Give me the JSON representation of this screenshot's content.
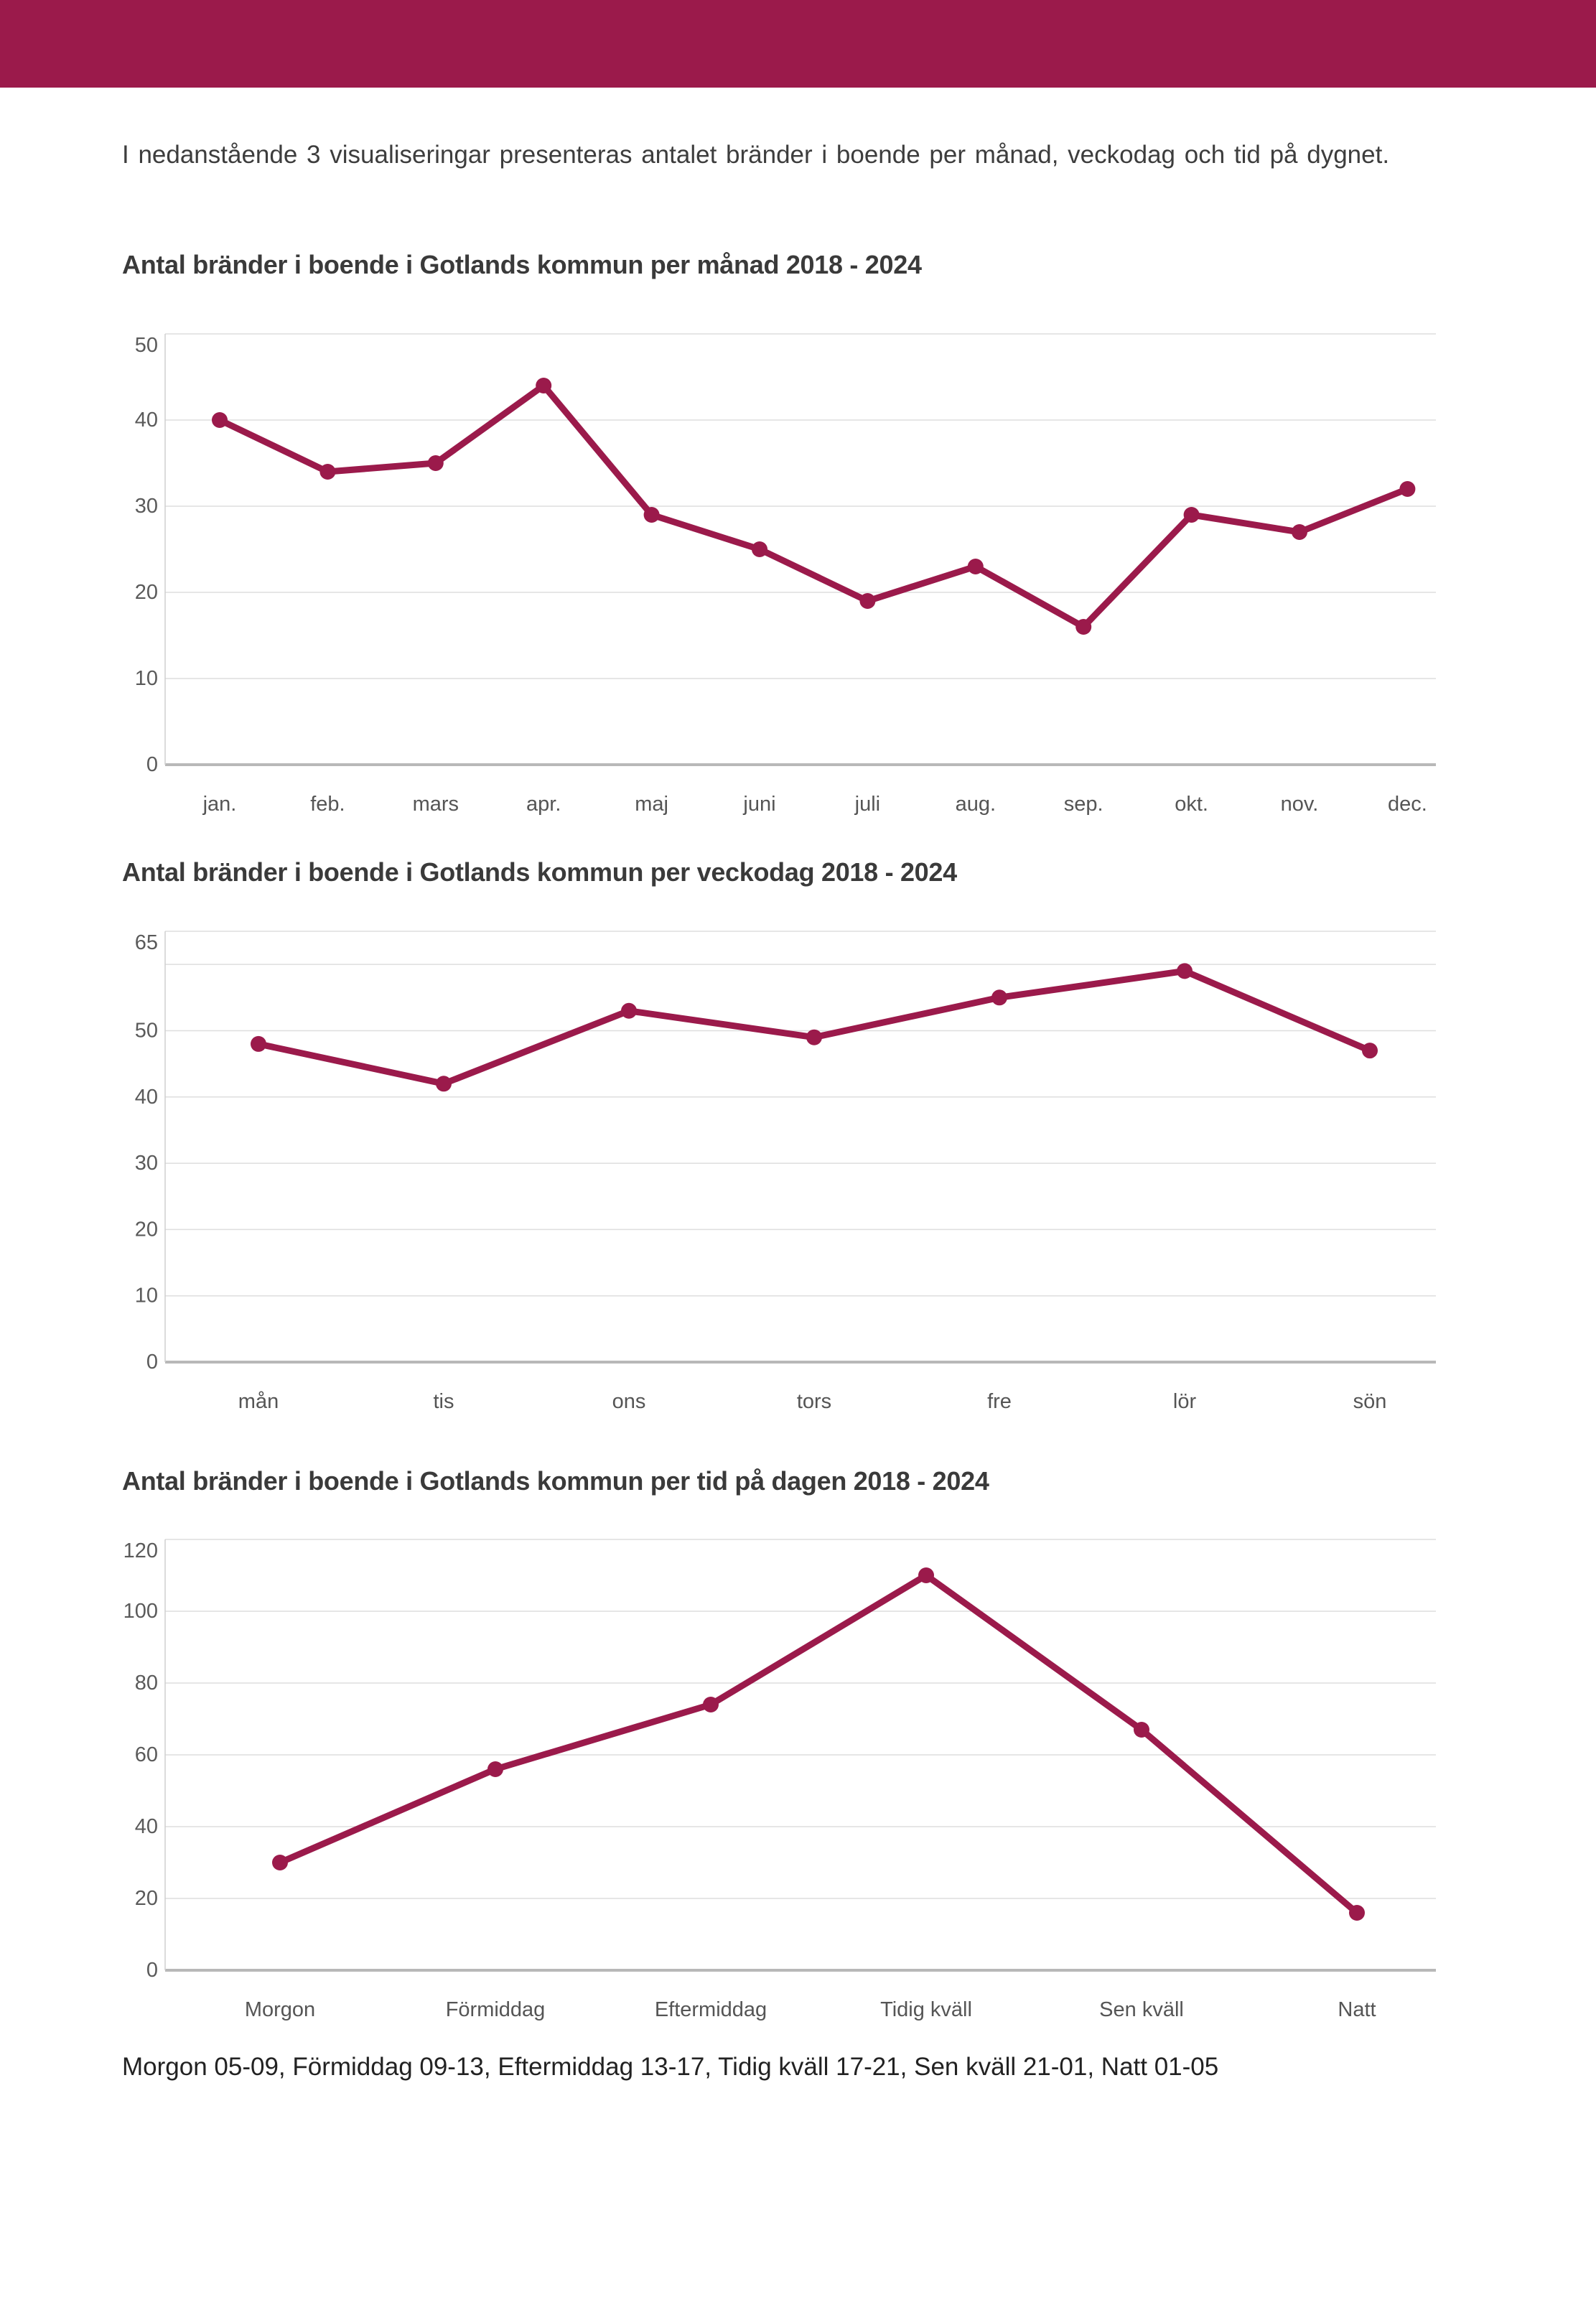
{
  "header": {
    "bar_color": "#9b1a4b"
  },
  "intro": {
    "text": "I nedanstående 3 visualiseringar presenteras antalet bränder i boende per månad, veckodag och tid på dygnet."
  },
  "colors": {
    "accent": "#9b1a4b",
    "grid": "#dedede",
    "baseline": "#b8b8b8",
    "axis_line": "#cfcfcf",
    "tick_label": "#5a5a5a",
    "title": "#3a3a3a"
  },
  "chart_data": [
    {
      "type": "line",
      "title": "Antal bränder i boende i Gotlands kommun per månad 2018 - 2024",
      "categories": [
        "jan.",
        "feb.",
        "mars",
        "apr.",
        "maj",
        "juni",
        "juli",
        "aug.",
        "sep.",
        "okt.",
        "nov.",
        "dec."
      ],
      "values": [
        40,
        34,
        35,
        44,
        29,
        25,
        19,
        23,
        16,
        29,
        27,
        32
      ],
      "y_ticks": [
        0,
        10,
        20,
        30,
        40,
        50
      ],
      "ylim": [
        0,
        50
      ],
      "grid_interval": 10,
      "grid": true,
      "legend": false,
      "xlabel": "",
      "ylabel": ""
    },
    {
      "type": "line",
      "title": "Antal bränder i boende i Gotlands kommun per veckodag 2018 - 2024",
      "categories": [
        "mån",
        "tis",
        "ons",
        "tors",
        "fre",
        "lör",
        "sön"
      ],
      "values": [
        48,
        42,
        53,
        49,
        55,
        59,
        47
      ],
      "y_ticks": [
        0,
        10,
        20,
        30,
        40,
        50,
        65
      ],
      "ylim": [
        0,
        65
      ],
      "grid_interval": 10,
      "grid": true,
      "legend": false,
      "xlabel": "",
      "ylabel": ""
    },
    {
      "type": "line",
      "title": "Antal bränder i boende i Gotlands kommun per tid på dagen 2018 - 2024",
      "categories": [
        "Morgon",
        "Förmiddag",
        "Eftermiddag",
        "Tidig kväll",
        "Sen kväll",
        "Natt"
      ],
      "values": [
        30,
        56,
        74,
        110,
        67,
        16
      ],
      "y_ticks": [
        0,
        20,
        40,
        60,
        80,
        100,
        120
      ],
      "ylim": [
        0,
        120
      ],
      "grid_interval": 20,
      "grid": true,
      "legend": false,
      "xlabel": "",
      "ylabel": ""
    }
  ],
  "footnote": {
    "text": "Morgon 05-09, Förmiddag 09-13, Eftermiddag 13-17, Tidig kväll 17-21, Sen kväll 21-01, Natt 01-05"
  }
}
